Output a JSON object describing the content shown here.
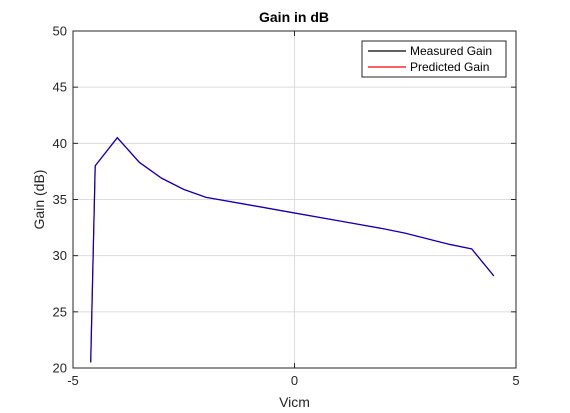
{
  "chart_data": {
    "type": "line",
    "title": "Gain in dB",
    "xlabel": "Vicm",
    "ylabel": "Gain (dB)",
    "xlim": [
      -5,
      5
    ],
    "ylim": [
      20,
      50
    ],
    "xticks": [
      -5,
      0,
      5
    ],
    "yticks": [
      20,
      25,
      30,
      35,
      40,
      45,
      50
    ],
    "grid": true,
    "legend_position": "top-right",
    "series": [
      {
        "name": "Measured Gain",
        "color": "#000000",
        "x": [
          -4.6,
          -4.5,
          -4.0,
          -3.5,
          -3.0,
          -2.5,
          -2.0,
          -1.0,
          0.0,
          1.0,
          2.0,
          2.5,
          3.0,
          3.5,
          4.0,
          4.5
        ],
        "y": [
          20.5,
          38.0,
          40.5,
          38.3,
          36.9,
          35.9,
          35.2,
          34.5,
          33.8,
          33.1,
          32.4,
          32.0,
          31.5,
          31.0,
          30.6,
          28.2
        ]
      },
      {
        "name": "Predicted Gain",
        "color": "#ff0000",
        "x": [
          -4.6,
          -4.5,
          -4.0,
          -3.5,
          -3.0,
          -2.5,
          -2.0,
          -1.0,
          0.0,
          1.0,
          2.0,
          2.5,
          3.0,
          3.5,
          4.0,
          4.5
        ],
        "y": [
          20.5,
          38.0,
          40.5,
          38.3,
          36.9,
          35.9,
          35.2,
          34.5,
          33.8,
          33.1,
          32.4,
          32.0,
          31.5,
          31.0,
          30.6,
          28.2
        ]
      }
    ]
  }
}
